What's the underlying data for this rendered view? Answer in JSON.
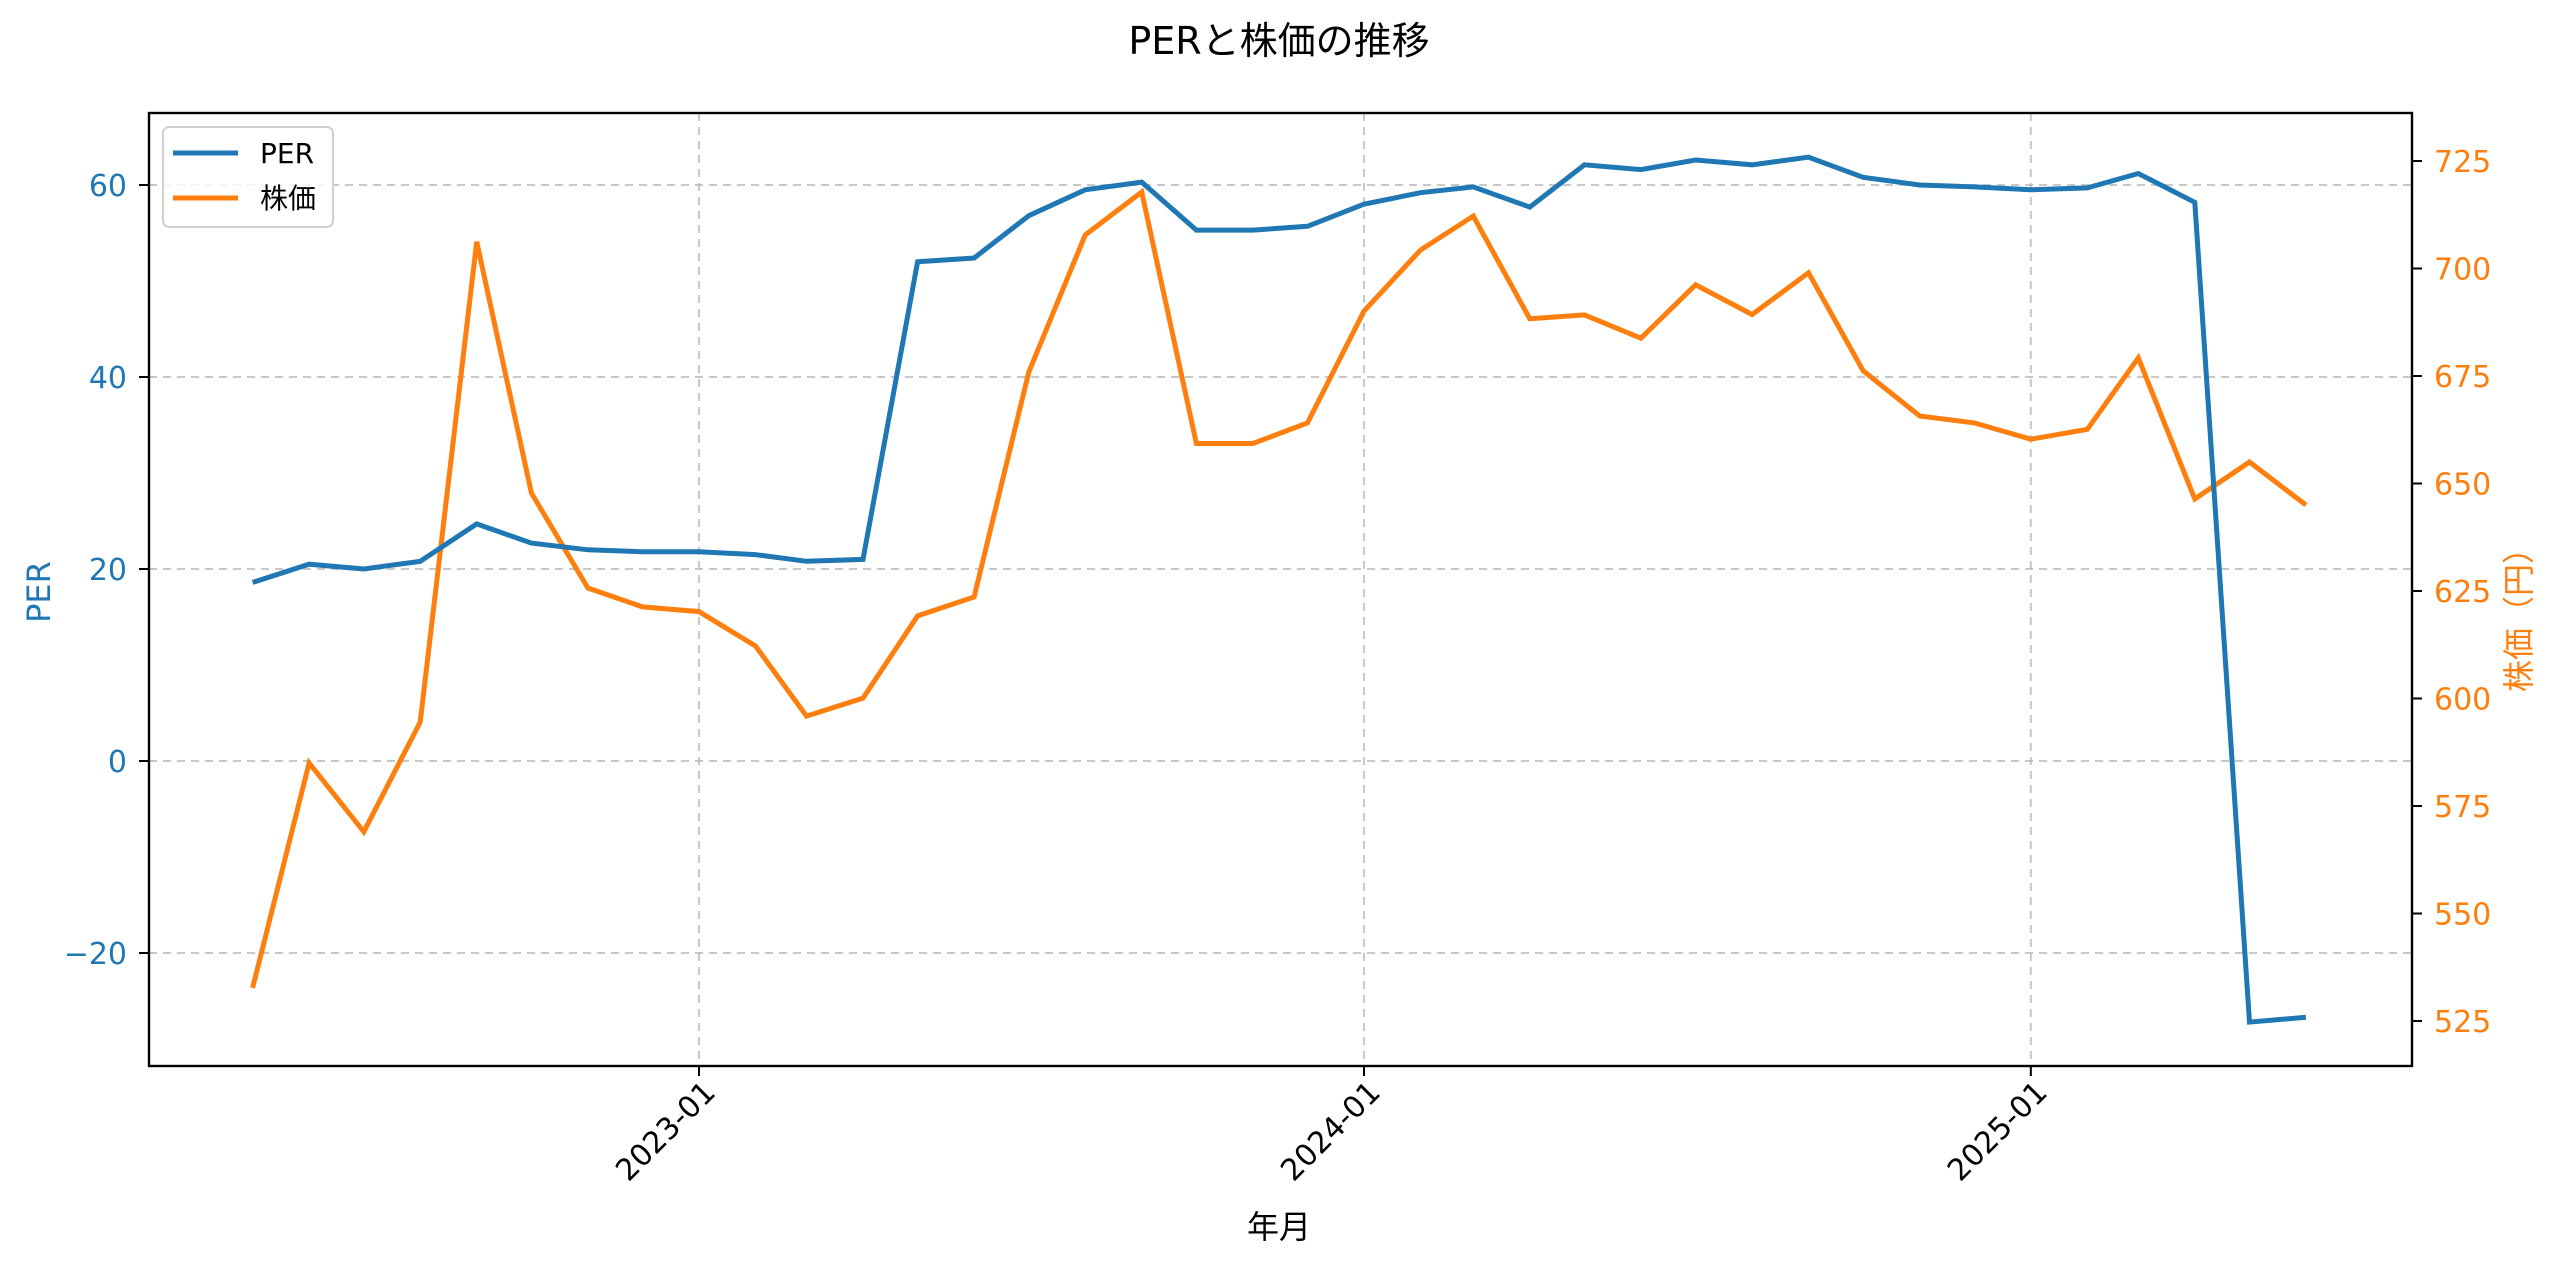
{
  "chart_data": {
    "type": "line",
    "title": "PERと株価の推移",
    "xlabel": "年月",
    "ylabel": "PER",
    "ylabel_right": "株価（円）",
    "x_ticks": [
      "2023-01",
      "2024-01",
      "2025-01"
    ],
    "y_ticks_left": [
      -20,
      0,
      20,
      40,
      60
    ],
    "y_ticks_right": [
      525,
      550,
      575,
      600,
      625,
      650,
      675,
      700,
      725
    ],
    "ylim_left": [
      -31.8,
      67.5
    ],
    "ylim_right": [
      513.4,
      736.2
    ],
    "grid": true,
    "legend_position": "upper left",
    "x": [
      "2022-05",
      "2022-06",
      "2022-07",
      "2022-08",
      "2022-09",
      "2022-10",
      "2022-11",
      "2022-12",
      "2023-01",
      "2023-02",
      "2023-03",
      "2023-04",
      "2023-05",
      "2023-06",
      "2023-07",
      "2023-08",
      "2023-09",
      "2023-10",
      "2023-11",
      "2023-12",
      "2024-01",
      "2024-02",
      "2024-03",
      "2024-04",
      "2024-05",
      "2024-06",
      "2024-07",
      "2024-08",
      "2024-09",
      "2024-10",
      "2024-11",
      "2024-12",
      "2025-01",
      "2025-02",
      "2025-03",
      "2025-04",
      "2025-05",
      "2025-06"
    ],
    "series": [
      {
        "name": "PER",
        "axis": "left",
        "color": "#1f77b4",
        "values": [
          18.6,
          20.5,
          20.0,
          20.8,
          24.7,
          22.7,
          22.0,
          21.8,
          21.8,
          21.5,
          20.8,
          21.0,
          52.0,
          52.4,
          56.8,
          59.5,
          60.3,
          55.3,
          55.3,
          55.7,
          58.0,
          59.2,
          59.8,
          57.7,
          62.1,
          61.6,
          62.6,
          62.1,
          62.9,
          60.8,
          60.0,
          59.8,
          59.5,
          59.7,
          61.2,
          58.2,
          -27.2,
          -26.7
        ]
      },
      {
        "name": "株価",
        "axis": "right",
        "color": "#ff7f0e",
        "values": [
          532.7,
          585.0,
          569.0,
          594.5,
          706.2,
          647.8,
          625.7,
          621.3,
          620.2,
          612.2,
          595.9,
          600.1,
          619.2,
          623.6,
          675.9,
          707.8,
          717.8,
          659.3,
          659.3,
          664.1,
          690.1,
          704.3,
          712.2,
          688.3,
          689.2,
          683.8,
          696.2,
          689.3,
          699.0,
          676.2,
          665.7,
          664.1,
          660.3,
          662.6,
          679.2,
          646.4,
          655.0,
          645.0
        ]
      }
    ]
  },
  "legend": {
    "items": [
      {
        "label": "PER",
        "color": "#1f77b4"
      },
      {
        "label": "株価",
        "color": "#ff7f0e"
      }
    ]
  },
  "colors": {
    "per": "#1f77b4",
    "price": "#ff7f0e",
    "grid": "#b0b0b0",
    "axis": "#000000"
  }
}
